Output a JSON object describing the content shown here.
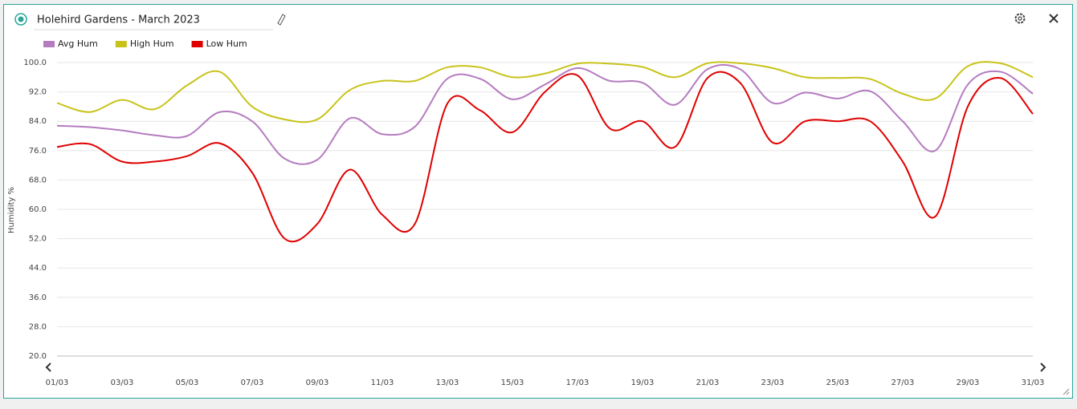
{
  "chart_data": {
    "type": "line",
    "title": "Holehird Gardens - March 2023",
    "y_label": "Humidity %",
    "categories": [
      "01/03",
      null,
      "03/03",
      null,
      "05/03",
      null,
      "07/03",
      null,
      "09/03",
      null,
      "11/03",
      null,
      "13/03",
      null,
      "15/03",
      null,
      "17/03",
      null,
      "19/03",
      null,
      "21/03",
      null,
      "23/03",
      null,
      "25/03",
      null,
      "27/03",
      null,
      "29/03",
      null,
      "31/03"
    ],
    "series": [
      {
        "name": "Avg Hum",
        "color": "#b57cc0",
        "values": [
          82.8,
          82.4,
          81.5,
          80.2,
          80.0,
          86.5,
          84.0,
          73.8,
          73.5,
          84.8,
          80.5,
          82.5,
          95.6,
          95.6,
          90.0,
          94.0,
          98.5,
          95.0,
          94.5,
          88.5,
          98.2,
          98.2,
          89.0,
          91.8,
          90.2,
          92.2,
          84.0,
          76.0,
          94.0,
          97.5,
          91.5
        ]
      },
      {
        "name": "High Hum",
        "color": "#c8c31a",
        "values": [
          89.0,
          86.5,
          89.8,
          87.3,
          93.8,
          97.5,
          88.0,
          84.5,
          84.5,
          92.5,
          95.0,
          95.0,
          98.7,
          98.7,
          96.0,
          97.0,
          99.7,
          99.7,
          98.8,
          96.0,
          99.8,
          99.8,
          98.5,
          96.0,
          95.8,
          95.5,
          91.5,
          90.2,
          99.0,
          99.8,
          96.0
        ]
      },
      {
        "name": "Low Hum",
        "color": "#e00000",
        "values": [
          77.0,
          77.8,
          73.0,
          73.0,
          74.5,
          78.0,
          70.0,
          52.0,
          56.0,
          70.8,
          58.5,
          56.0,
          88.8,
          87.0,
          81.0,
          92.0,
          96.5,
          82.0,
          84.0,
          77.0,
          95.8,
          94.5,
          78.2,
          84.0,
          84.0,
          84.0,
          73.0,
          58.0,
          88.0,
          95.8,
          86.0
        ]
      }
    ],
    "ylim": [
      20,
      100
    ],
    "yticks": [
      {
        "value": 20,
        "label": "20.0"
      },
      {
        "value": 28,
        "label": "28.0"
      },
      {
        "value": 36,
        "label": "36.0"
      },
      {
        "value": 44,
        "label": "44.0"
      },
      {
        "value": 52,
        "label": "52.0"
      },
      {
        "value": 60,
        "label": "60.0"
      },
      {
        "value": 68,
        "label": "68.0"
      },
      {
        "value": 76,
        "label": "76.0"
      },
      {
        "value": 84,
        "label": "84.0"
      },
      {
        "value": 92,
        "label": "92.0"
      },
      {
        "value": 100,
        "label": "100.0"
      }
    ],
    "grid": true
  }
}
